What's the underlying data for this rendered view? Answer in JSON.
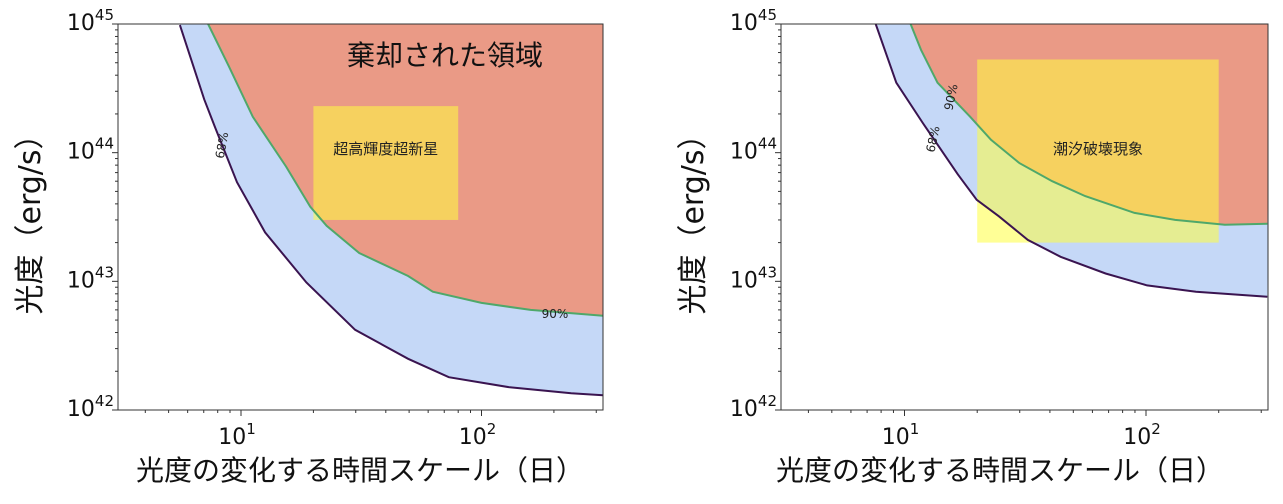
{
  "chart_data": [
    {
      "type": "area",
      "xlabel": "光度の変化する時間スケール（日）",
      "ylabel": "光度（erg/s）",
      "xscale": "log",
      "yscale": "log",
      "xlim": [
        3.08,
        320
      ],
      "ylim": [
        1e+42,
        1e+45
      ],
      "grid": false,
      "x_ticks": [
        {
          "value": 10,
          "base": "10",
          "exp": "1"
        },
        {
          "value": 100,
          "base": "10",
          "exp": "2"
        }
      ],
      "y_ticks": [
        {
          "value": 1e+42,
          "base": "10",
          "exp": "42"
        },
        {
          "value": 1e+43,
          "base": "10",
          "exp": "43"
        },
        {
          "value": 1e+44,
          "base": "10",
          "exp": "44"
        },
        {
          "value": 1e+45,
          "base": "10",
          "exp": "45"
        }
      ],
      "series": [
        {
          "name": "68%",
          "color": "#3a1450",
          "x": [
            5.57,
            7.03,
            7.77,
            9.62,
            12.6,
            18.7,
            29.8,
            49.5,
            73.1,
            131,
            236,
            320
          ],
          "y": [
            9.8e+44,
            2.6e+44,
            1.6e+44,
            5.9e+43,
            2.4e+43,
            9.8e+42,
            4.2e+42,
            2.5e+42,
            1.8e+42,
            1.5e+42,
            1.35e+42,
            1.3e+42
          ]
        },
        {
          "name": "90%",
          "color": "#4fa86a",
          "x": [
            7.3,
            8.9,
            11.2,
            15.4,
            19.4,
            22.7,
            31,
            49.5,
            62.7,
            100,
            160,
            320
          ],
          "y": [
            1e+45,
            4.7e+44,
            1.9e+44,
            7.8e+43,
            3.8e+43,
            2.7e+43,
            1.66e+43,
            1.1e+43,
            8.3e+42,
            6.8e+42,
            6e+42,
            5.4e+42
          ]
        }
      ],
      "fill_colors": {
        "between": "#c5d8f7",
        "rejected": "#ea9a86",
        "box": "#ffff40"
      },
      "region_label": "棄却された領域",
      "box": {
        "label": "超高輝度超新星",
        "x": [
          20,
          80
        ],
        "y": [
          3e+43,
          2.3e+44
        ]
      }
    },
    {
      "type": "area",
      "xlabel": "光度の変化する時間スケール（日）",
      "ylabel": "光度（erg/s）",
      "xscale": "log",
      "yscale": "log",
      "xlim": [
        3.08,
        320
      ],
      "ylim": [
        1e+42,
        1e+45
      ],
      "grid": false,
      "x_ticks": [
        {
          "value": 10,
          "base": "10",
          "exp": "1"
        },
        {
          "value": 100,
          "base": "10",
          "exp": "2"
        }
      ],
      "y_ticks": [
        {
          "value": 1e+42,
          "base": "10",
          "exp": "42"
        },
        {
          "value": 1e+43,
          "base": "10",
          "exp": "43"
        },
        {
          "value": 1e+44,
          "base": "10",
          "exp": "44"
        },
        {
          "value": 1e+45,
          "base": "10",
          "exp": "45"
        }
      ],
      "series": [
        {
          "name": "68%",
          "color": "#3a1450",
          "x": [
            7.6,
            9.25,
            11.9,
            16.6,
            19.9,
            24.6,
            32.4,
            44.3,
            68,
            101,
            161,
            318
          ],
          "y": [
            1e+45,
            3.5e+44,
            1.7e+44,
            6.8e+43,
            4.3e+43,
            3.2e+43,
            2.1e+43,
            1.55e+43,
            1.15e+43,
            9.3e+42,
            8.3e+42,
            7.6e+42
          ]
        },
        {
          "name": "90%",
          "color": "#4fa86a",
          "x": [
            10.6,
            11.7,
            13.7,
            18.7,
            22.8,
            29.9,
            40.9,
            56,
            89.6,
            132,
            212,
            318
          ],
          "y": [
            1e+45,
            6.3e+44,
            3.5e+44,
            1.9e+44,
            1.26e+44,
            8.3e+43,
            6e+43,
            4.6e+43,
            3.4e+43,
            3e+43,
            2.75e+43,
            2.8e+43
          ]
        }
      ],
      "fill_colors": {
        "between": "#c5d8f7",
        "rejected": "#ea9a86",
        "box": "#ffff40"
      },
      "box": {
        "label": "潮汐破壊現象",
        "x": [
          20,
          200
        ],
        "y": [
          2e+43,
          5.3e+44
        ]
      }
    }
  ]
}
